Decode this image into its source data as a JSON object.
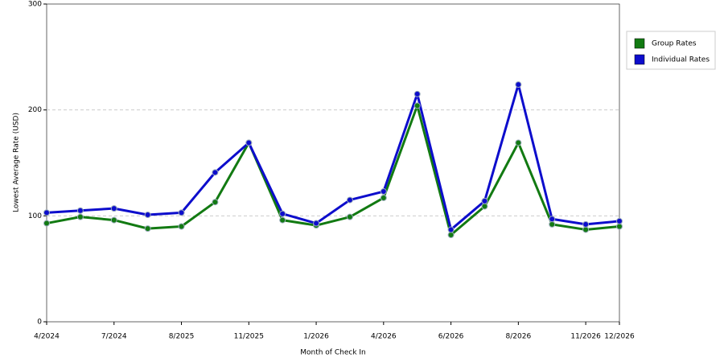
{
  "chart_data": {
    "type": "line",
    "x_label": "Month of Check In",
    "y_label": "Lowest Average Rate (USD)",
    "categories": [
      "4/2024",
      null,
      "7/2024",
      null,
      "8/2025",
      null,
      "11/2025",
      null,
      "1/2026",
      null,
      "4/2026",
      null,
      "6/2026",
      null,
      "8/2026",
      null,
      "11/2026",
      "12/2026"
    ],
    "series": [
      {
        "name": "Group Rates",
        "color": "#127a12",
        "values": [
          93,
          99,
          96,
          88,
          90,
          113,
          169,
          96,
          91,
          99,
          117,
          204,
          82,
          109,
          169,
          92,
          87,
          90
        ]
      },
      {
        "name": "Individual Rates",
        "color": "#0d0dcc",
        "values": [
          103,
          105,
          107,
          101,
          103,
          141,
          169,
          102,
          93,
          115,
          123,
          215,
          87,
          114,
          224,
          97,
          92,
          95
        ]
      }
    ],
    "ylim": [
      0,
      300
    ],
    "yticks": [
      0,
      100,
      200,
      300
    ],
    "grid": true,
    "legend": "right"
  }
}
